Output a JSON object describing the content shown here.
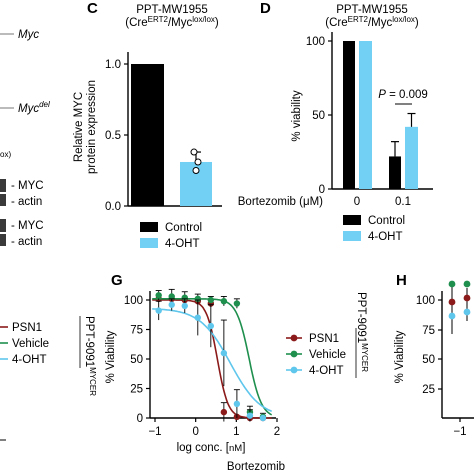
{
  "panel_labels": {
    "c": "C",
    "d": "D",
    "g": "G",
    "h": "H"
  },
  "left_fragment": {
    "gene_myc": "Myc",
    "gene_mycdel_base": "Myc",
    "gene_mycdel_sup": "del",
    "lox_fragment": "ox)",
    "blot_labels": [
      "MYC",
      "actin",
      "MYC",
      "actin"
    ],
    "legend": [
      "PSN1",
      "Vehicle",
      "4-OHT"
    ]
  },
  "panel_c": {
    "title_line1": "PPT-MW1955",
    "title_line2_a": "(Cre",
    "title_line2_sup1": "ERT2",
    "title_line2_b": "/Myc",
    "title_line2_sup2": "lox/lox",
    "title_line2_c": ")",
    "ylabel_line1": "Relative MYC",
    "ylabel_line2": "protein expression",
    "yticks": [
      "0.0",
      "0.5",
      "1.0"
    ],
    "legend": [
      "Control",
      "4-OHT"
    ]
  },
  "panel_d": {
    "title_line1": "PPT-MW1955",
    "title_line2_a": "(Cre",
    "title_line2_sup1": "ERT2",
    "title_line2_b": "/Myc",
    "title_line2_sup2": "lox/lox",
    "title_line2_c": ")",
    "ylabel": "% viability",
    "yticks": [
      "0",
      "50",
      "100"
    ],
    "pvalue_p": "P",
    "pvalue_rest": " = 0.009",
    "x_label_a": "Bortezomib (",
    "x_label_mu": "μ",
    "x_label_b": "M)",
    "x_values": [
      "0",
      "0.1"
    ],
    "legend": [
      "Control",
      "4-OHT"
    ]
  },
  "panel_g": {
    "ylabel": "% Viability",
    "yticks": [
      "0",
      "25",
      "50",
      "75",
      "100"
    ],
    "xticks": [
      "−1",
      "0",
      "1",
      "2"
    ],
    "xlabel_a": "log conc. [",
    "xlabel_unit": "nM",
    "xlabel_b": "]",
    "drug": "Bortezomib",
    "legend": [
      "PSN1",
      "Vehicle",
      "4-OHT"
    ],
    "side_label_base": "PPT-9091",
    "side_label_sup": "MYCER"
  },
  "panel_h": {
    "ylabel": "% Viability",
    "yticks": [
      "100",
      "75",
      "50",
      "25"
    ],
    "xticks": [
      "−1"
    ]
  },
  "colors": {
    "control": "#000000",
    "ohT_bar": "#73d0f5",
    "psn1": "#8b1a1a",
    "vehicle": "#1f8f4e",
    "ohT_line": "#5fc6ec"
  },
  "chart_data": [
    {
      "type": "bar",
      "panel": "C",
      "title": "PPT-MW1955 (CreERT2/Myclox/lox)",
      "ylabel": "Relative MYC protein expression",
      "ylim": [
        0,
        1.0
      ],
      "series": [
        {
          "name": "Control",
          "values": [
            1.0
          ],
          "error": [
            0
          ]
        },
        {
          "name": "4-OHT",
          "values": [
            0.31
          ],
          "error": [
            0.07
          ],
          "points": [
            0.38,
            0.31,
            0.25
          ]
        }
      ],
      "legend": "bottom"
    },
    {
      "type": "bar",
      "panel": "D",
      "title": "PPT-MW1955 (CreERT2/Myclox/lox)",
      "ylabel": "% viability",
      "xlabel": "Bortezomib (μM)",
      "categories": [
        "0",
        "0.1"
      ],
      "ylim": [
        0,
        100
      ],
      "series": [
        {
          "name": "Control",
          "values": [
            100,
            22
          ],
          "error": [
            0,
            10
          ]
        },
        {
          "name": "4-OHT",
          "values": [
            100,
            42
          ],
          "error": [
            0,
            9
          ]
        }
      ],
      "annotation": "P = 0.009",
      "legend": "bottom"
    },
    {
      "type": "line",
      "panel": "G",
      "ylabel": "% Viability",
      "xlabel": "log conc. [nM]",
      "drug": "Bortezomib",
      "xlim": [
        -1,
        2
      ],
      "ylim": [
        0,
        100
      ],
      "series": [
        {
          "name": "PSN1",
          "x": [
            -0.6,
            -0.3,
            0.0,
            0.3,
            0.6,
            0.9,
            1.2,
            1.5,
            1.8
          ],
          "y": [
            101,
            101,
            100,
            99,
            97,
            5,
            1,
            0,
            0
          ],
          "ic50_log": 0.75
        },
        {
          "name": "Vehicle",
          "x": [
            -0.6,
            -0.3,
            0.0,
            0.3,
            0.6,
            0.9,
            1.2,
            1.5,
            1.8
          ],
          "y": [
            104,
            103,
            102,
            101,
            100,
            99,
            97,
            5,
            1
          ],
          "ic50_log": 1.48
        },
        {
          "name": "4-OHT",
          "x": [
            -0.6,
            -0.3,
            0.0,
            0.3,
            0.6,
            0.9,
            1.2,
            1.5,
            1.8
          ],
          "y": [
            91,
            96,
            95,
            85,
            78,
            55,
            12,
            2,
            0
          ],
          "ic50_log": 1.05
        }
      ],
      "legend": "right"
    }
  ]
}
